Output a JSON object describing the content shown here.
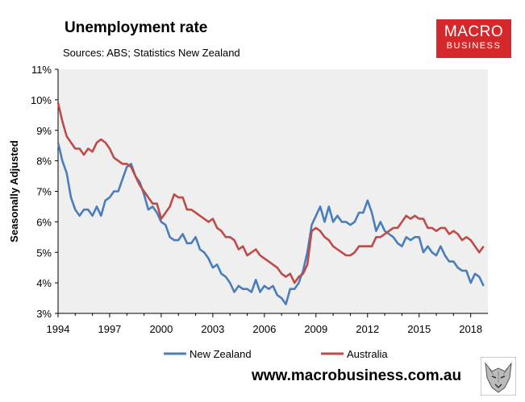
{
  "title": "Unemployment rate",
  "subtitle": "Sources: ABS; Statistics New Zealand",
  "logo": {
    "line1": "MACRO",
    "line2": "BUSINESS"
  },
  "website": "www.macrobusiness.com.au",
  "colors": {
    "new_zealand": "#4a7ebb",
    "australia": "#be4b48",
    "plot_bg": "#efefef",
    "logo_bg": "#d5282a"
  },
  "chart_data": {
    "type": "line",
    "title": "Unemployment rate",
    "xlabel": "",
    "ylabel": "Seasonally Adjusted",
    "xlim": [
      1994,
      2019
    ],
    "ylim": [
      3,
      11
    ],
    "x_ticks": [
      "1994",
      "1997",
      "2000",
      "2003",
      "2006",
      "2009",
      "2012",
      "2015",
      "2018"
    ],
    "y_ticks": [
      "3%",
      "4%",
      "5%",
      "6%",
      "7%",
      "8%",
      "9%",
      "10%",
      "11%"
    ],
    "grid": false,
    "legend": "bottom",
    "series": [
      {
        "name": "New Zealand",
        "color": "#4a7ebb",
        "x": [
          1994.0,
          1994.25,
          1994.5,
          1994.75,
          1995.0,
          1995.25,
          1995.5,
          1995.75,
          1996.0,
          1996.25,
          1996.5,
          1996.75,
          1997.0,
          1997.25,
          1997.5,
          1997.75,
          1998.0,
          1998.25,
          1998.5,
          1998.75,
          1999.0,
          1999.25,
          1999.5,
          1999.75,
          2000.0,
          2000.25,
          2000.5,
          2000.75,
          2001.0,
          2001.25,
          2001.5,
          2001.75,
          2002.0,
          2002.25,
          2002.5,
          2002.75,
          2003.0,
          2003.25,
          2003.5,
          2003.75,
          2004.0,
          2004.25,
          2004.5,
          2004.75,
          2005.0,
          2005.25,
          2005.5,
          2005.75,
          2006.0,
          2006.25,
          2006.5,
          2006.75,
          2007.0,
          2007.25,
          2007.5,
          2007.75,
          2008.0,
          2008.25,
          2008.5,
          2008.75,
          2009.0,
          2009.25,
          2009.5,
          2009.75,
          2010.0,
          2010.25,
          2010.5,
          2010.75,
          2011.0,
          2011.25,
          2011.5,
          2011.75,
          2012.0,
          2012.25,
          2012.5,
          2012.75,
          2013.0,
          2013.25,
          2013.5,
          2013.75,
          2014.0,
          2014.25,
          2014.5,
          2014.75,
          2015.0,
          2015.25,
          2015.5,
          2015.75,
          2016.0,
          2016.25,
          2016.5,
          2016.75,
          2017.0,
          2017.25,
          2017.5,
          2017.75,
          2018.0,
          2018.25,
          2018.5,
          2018.75
        ],
        "values": [
          8.6,
          8.0,
          7.6,
          6.8,
          6.4,
          6.2,
          6.4,
          6.4,
          6.2,
          6.5,
          6.2,
          6.7,
          6.8,
          7.0,
          7.0,
          7.4,
          7.8,
          7.9,
          7.5,
          7.3,
          6.9,
          6.4,
          6.5,
          6.3,
          6.0,
          5.9,
          5.5,
          5.4,
          5.4,
          5.6,
          5.3,
          5.3,
          5.5,
          5.1,
          5.0,
          4.8,
          4.5,
          4.6,
          4.3,
          4.2,
          4.0,
          3.7,
          3.9,
          3.8,
          3.8,
          3.7,
          4.1,
          3.7,
          3.9,
          3.8,
          3.9,
          3.6,
          3.5,
          3.3,
          3.8,
          3.8,
          4.0,
          4.4,
          5.0,
          5.9,
          6.2,
          6.5,
          6.0,
          6.5,
          6.0,
          6.2,
          6.0,
          6.0,
          5.9,
          6.0,
          6.3,
          6.3,
          6.7,
          6.3,
          5.7,
          6.0,
          5.7,
          5.6,
          5.5,
          5.3,
          5.2,
          5.5,
          5.4,
          5.5,
          5.5,
          5.0,
          5.2,
          5.0,
          4.9,
          5.2,
          4.9,
          4.7,
          4.7,
          4.5,
          4.4,
          4.4,
          4.0,
          4.3,
          4.2,
          3.9
        ]
      },
      {
        "name": "Australia",
        "color": "#be4b48",
        "x": [
          1994.0,
          1994.25,
          1994.5,
          1994.75,
          1995.0,
          1995.25,
          1995.5,
          1995.75,
          1996.0,
          1996.25,
          1996.5,
          1996.75,
          1997.0,
          1997.25,
          1997.5,
          1997.75,
          1998.0,
          1998.25,
          1998.5,
          1998.75,
          1999.0,
          1999.25,
          1999.5,
          1999.75,
          2000.0,
          2000.25,
          2000.5,
          2000.75,
          2001.0,
          2001.25,
          2001.5,
          2001.75,
          2002.0,
          2002.25,
          2002.5,
          2002.75,
          2003.0,
          2003.25,
          2003.5,
          2003.75,
          2004.0,
          2004.25,
          2004.5,
          2004.75,
          2005.0,
          2005.25,
          2005.5,
          2005.75,
          2006.0,
          2006.25,
          2006.5,
          2006.75,
          2007.0,
          2007.25,
          2007.5,
          2007.75,
          2008.0,
          2008.25,
          2008.5,
          2008.75,
          2009.0,
          2009.25,
          2009.5,
          2009.75,
          2010.0,
          2010.25,
          2010.5,
          2010.75,
          2011.0,
          2011.25,
          2011.5,
          2011.75,
          2012.0,
          2012.25,
          2012.5,
          2012.75,
          2013.0,
          2013.25,
          2013.5,
          2013.75,
          2014.0,
          2014.25,
          2014.5,
          2014.75,
          2015.0,
          2015.25,
          2015.5,
          2015.75,
          2016.0,
          2016.25,
          2016.5,
          2016.75,
          2017.0,
          2017.25,
          2017.5,
          2017.75,
          2018.0,
          2018.25,
          2018.5,
          2018.75
        ],
        "values": [
          9.9,
          9.3,
          8.8,
          8.6,
          8.4,
          8.4,
          8.2,
          8.4,
          8.3,
          8.6,
          8.7,
          8.6,
          8.4,
          8.1,
          8.0,
          7.9,
          7.9,
          7.8,
          7.5,
          7.2,
          7.0,
          6.8,
          6.6,
          6.6,
          6.1,
          6.3,
          6.5,
          6.9,
          6.8,
          6.8,
          6.4,
          6.4,
          6.3,
          6.2,
          6.1,
          6.0,
          6.1,
          5.8,
          5.7,
          5.5,
          5.5,
          5.4,
          5.1,
          5.2,
          4.9,
          5.0,
          5.1,
          4.9,
          4.8,
          4.7,
          4.6,
          4.5,
          4.3,
          4.2,
          4.3,
          4.0,
          4.2,
          4.3,
          4.6,
          5.7,
          5.8,
          5.7,
          5.5,
          5.4,
          5.2,
          5.1,
          5.0,
          4.9,
          4.9,
          5.0,
          5.2,
          5.2,
          5.2,
          5.2,
          5.5,
          5.5,
          5.6,
          5.7,
          5.8,
          5.8,
          6.0,
          6.2,
          6.1,
          6.2,
          6.1,
          6.1,
          5.8,
          5.8,
          5.7,
          5.8,
          5.8,
          5.6,
          5.7,
          5.6,
          5.4,
          5.5,
          5.4,
          5.2,
          5.0,
          5.2
        ]
      }
    ]
  }
}
